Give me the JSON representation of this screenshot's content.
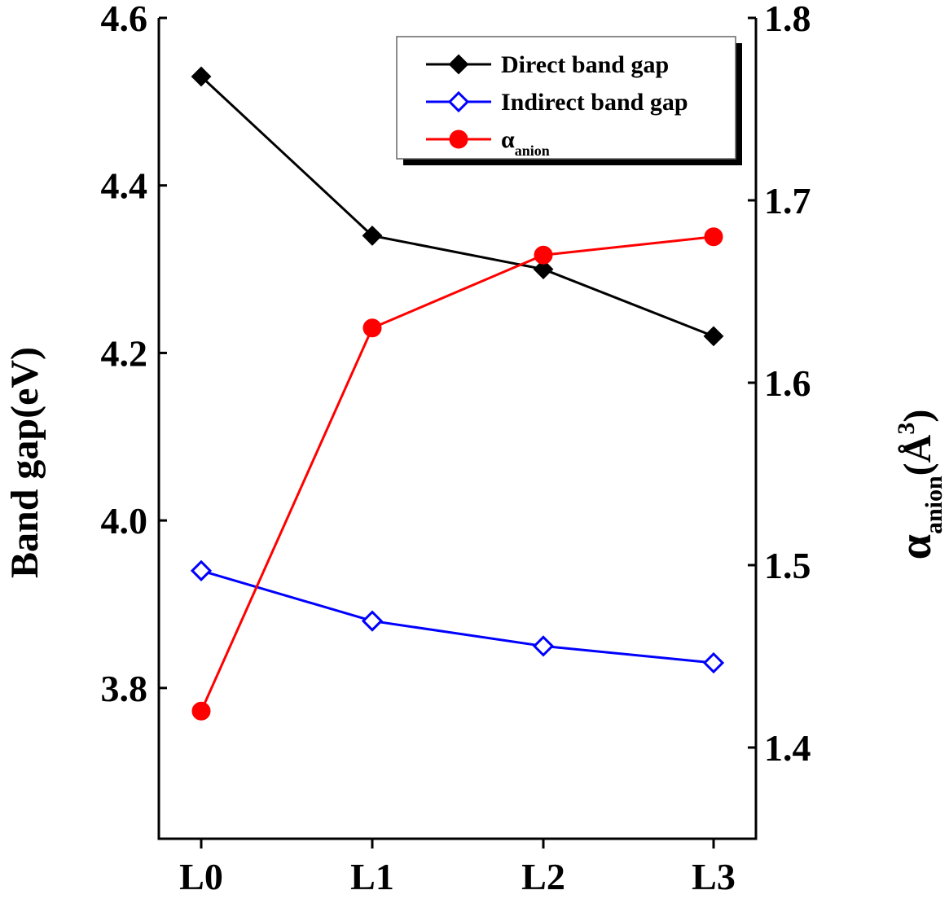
{
  "chart_data": {
    "type": "line",
    "categories": [
      "L0",
      "L1",
      "L2",
      "L3"
    ],
    "y_left": {
      "label": "Band gap(eV)",
      "range": [
        3.62,
        4.6
      ],
      "ticks": [
        "3.8",
        "4.0",
        "4.2",
        "4.4",
        "4.6"
      ]
    },
    "y_right": {
      "label_main": "α",
      "label_sub": "anion",
      "label_unit_open": "(",
      "label_unit": "Å",
      "label_unit_sup": "3",
      "label_unit_close": ")",
      "range": [
        1.35,
        1.8
      ],
      "ticks": [
        "1.4",
        "1.5",
        "1.6",
        "1.7",
        "1.8"
      ]
    },
    "series": [
      {
        "name": "Direct band gap",
        "axis": "left",
        "color": "#000000",
        "marker": "diamond-filled",
        "values": [
          4.53,
          4.34,
          4.3,
          4.22
        ]
      },
      {
        "name": "Indirect band gap",
        "axis": "left",
        "color": "#0000ff",
        "marker": "diamond-open",
        "values": [
          3.94,
          3.88,
          3.85,
          3.83
        ]
      },
      {
        "name": "α",
        "name_sub": "anion",
        "axis": "right",
        "color": "#ff0000",
        "marker": "circle-filled",
        "values": [
          1.42,
          1.63,
          1.67,
          1.68
        ]
      }
    ],
    "legend_position": "top-right",
    "grid": false
  }
}
